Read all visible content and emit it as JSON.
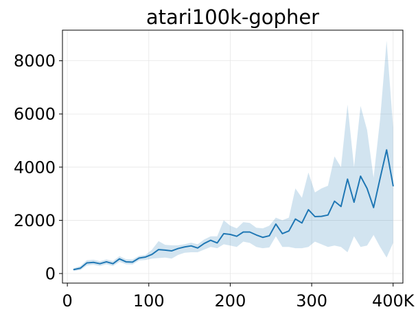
{
  "chart_data": {
    "type": "line",
    "title": "atari100k-gopher",
    "xlabel": "",
    "ylabel": "",
    "xlim": [
      -6000,
      412000
    ],
    "ylim": [
      -360,
      9150
    ],
    "grid": true,
    "colors": {
      "line": "#1f77b4",
      "band": "#1f77b4"
    },
    "x_ticks": [
      {
        "value": 0,
        "label": "0"
      },
      {
        "value": 100000,
        "label": "100"
      },
      {
        "value": 200000,
        "label": "200"
      },
      {
        "value": 300000,
        "label": "300"
      },
      {
        "value": 400000,
        "label": "400K"
      }
    ],
    "y_ticks": [
      {
        "value": 0,
        "label": "0"
      },
      {
        "value": 2000,
        "label": "2000"
      },
      {
        "value": 4000,
        "label": "4000"
      },
      {
        "value": 6000,
        "label": "6000"
      },
      {
        "value": 8000,
        "label": "8000"
      }
    ],
    "series": [
      {
        "x": [
          8000,
          16000,
          24000,
          32000,
          40000,
          48000,
          56000,
          64000,
          72000,
          80000,
          88000,
          96000,
          104000,
          112000,
          120000,
          128000,
          136000,
          144000,
          152000,
          160000,
          168000,
          176000,
          184000,
          192000,
          200000,
          208000,
          216000,
          224000,
          232000,
          240000,
          248000,
          256000,
          264000,
          272000,
          280000,
          288000,
          296000,
          304000,
          312000,
          320000,
          328000,
          336000,
          344000,
          352000,
          360000,
          368000,
          376000,
          384000,
          392000,
          400000
        ],
        "y": [
          150,
          200,
          400,
          420,
          370,
          440,
          370,
          550,
          440,
          430,
          580,
          620,
          720,
          900,
          880,
          850,
          940,
          1000,
          1040,
          960,
          1130,
          1250,
          1150,
          1500,
          1470,
          1400,
          1560,
          1560,
          1450,
          1360,
          1420,
          1860,
          1500,
          1600,
          2050,
          1900,
          2400,
          2140,
          2150,
          2200,
          2720,
          2520,
          3550,
          2680,
          3660,
          3200,
          2480,
          3580,
          4650,
          3300
        ],
        "lower": [
          100,
          130,
          300,
          330,
          280,
          350,
          280,
          440,
          350,
          340,
          490,
          510,
          560,
          580,
          600,
          560,
          700,
          780,
          800,
          800,
          900,
          1000,
          950,
          1100,
          1050,
          1000,
          1200,
          1150,
          1000,
          950,
          980,
          1400,
          1000,
          1000,
          950,
          950,
          1000,
          1200,
          1100,
          1000,
          1050,
          1000,
          800,
          1400,
          1000,
          1050,
          1450,
          1000,
          600,
          1150
        ],
        "upper": [
          200,
          280,
          500,
          520,
          460,
          530,
          470,
          650,
          540,
          530,
          660,
          700,
          900,
          1220,
          1080,
          1060,
          1060,
          1100,
          1160,
          1100,
          1280,
          1400,
          1400,
          2000,
          1800,
          1700,
          1930,
          1900,
          1720,
          1700,
          1800,
          2100,
          2000,
          2100,
          3200,
          2850,
          3800,
          3050,
          3200,
          3300,
          4400,
          4000,
          6350,
          4000,
          6300,
          5400,
          3600,
          5800,
          8750,
          5500
        ]
      }
    ]
  }
}
